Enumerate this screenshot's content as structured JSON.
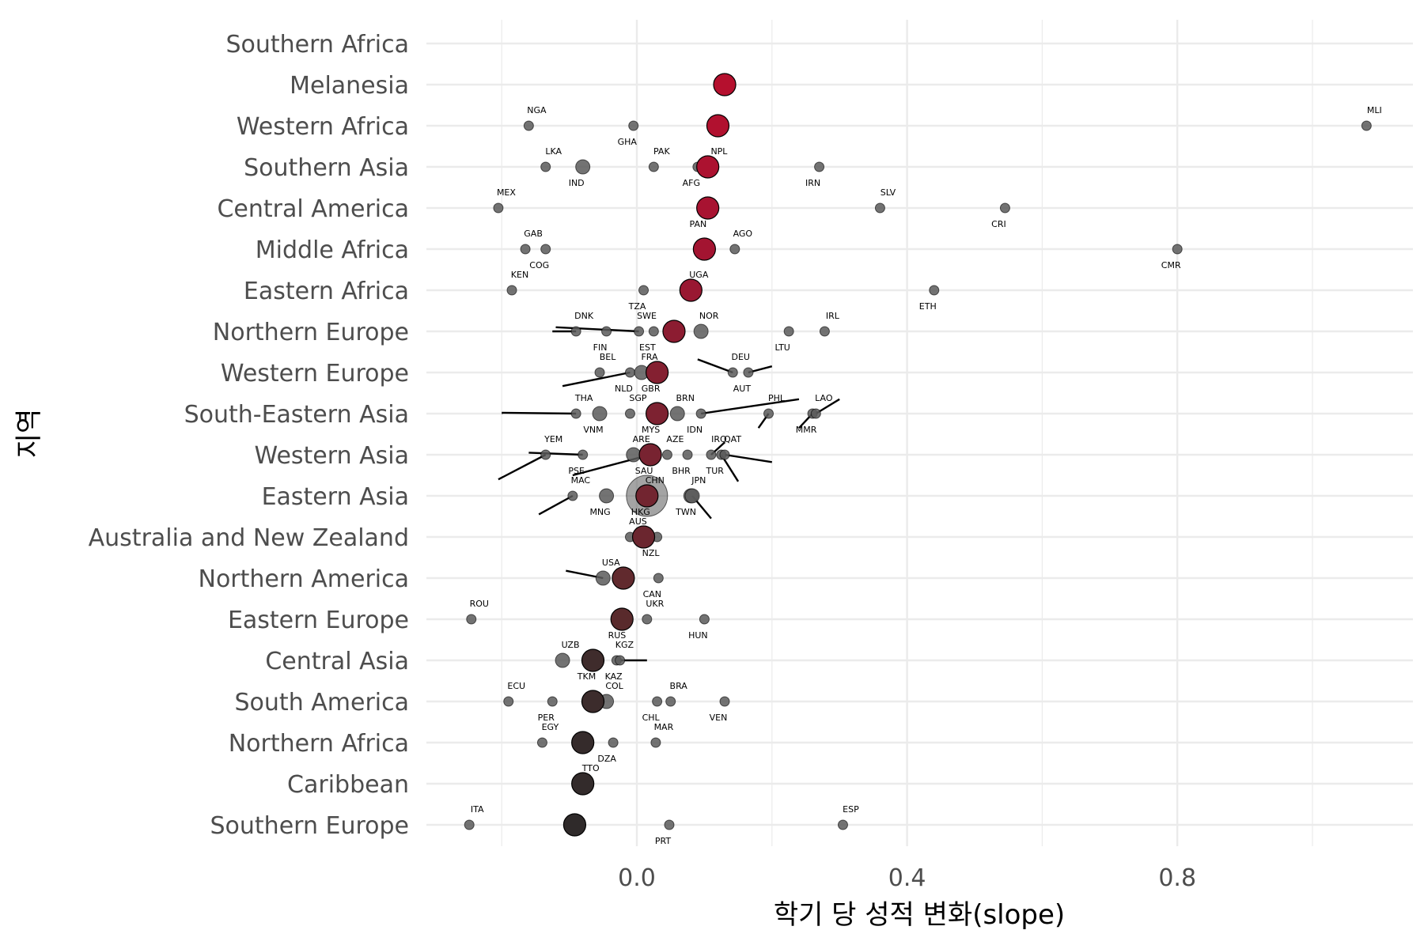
{
  "chart_data": {
    "type": "scatter",
    "title": "",
    "xlabel": "학기 당 성적 변화(slope)",
    "ylabel": "지역",
    "xlim": [
      -0.32,
      1.16
    ],
    "x_ticks": [
      {
        "value": 0.0,
        "label": "0.0"
      },
      {
        "value": 0.4,
        "label": "0.4"
      },
      {
        "value": 0.8,
        "label": "0.8"
      }
    ],
    "x_minor_gridlines": [
      -0.2,
      0.2,
      0.6,
      1.0
    ],
    "grid": true,
    "legend": "none",
    "colors": {
      "gridline": "#ebebeb",
      "country_point": "#5a5a5a",
      "mean_high": "#b5102e",
      "mean_low": "#2e2a2a",
      "outline": "#000000",
      "leader": "#000000"
    },
    "regions": [
      "Southern Africa",
      "Melanesia",
      "Western Africa",
      "Southern Asia",
      "Central America",
      "Middle Africa",
      "Eastern Africa",
      "Northern Europe",
      "Western Europe",
      "South-Eastern Asia",
      "Western Asia",
      "Eastern Asia",
      "Australia and New Zealand",
      "Northern America",
      "Eastern Europe",
      "Central Asia",
      "South America",
      "Northern Africa",
      "Caribbean",
      "Southern Europe"
    ],
    "region_means": [
      {
        "region": "Melanesia",
        "x": 0.13,
        "color": "#b5102e"
      },
      {
        "region": "Western Africa",
        "x": 0.12,
        "color": "#b1112f"
      },
      {
        "region": "Southern Asia",
        "x": 0.105,
        "color": "#ac1230"
      },
      {
        "region": "Central America",
        "x": 0.105,
        "color": "#a81331"
      },
      {
        "region": "Middle Africa",
        "x": 0.1,
        "color": "#a31431"
      },
      {
        "region": "Eastern Africa",
        "x": 0.08,
        "color": "#991832"
      },
      {
        "region": "Northern Europe",
        "x": 0.055,
        "color": "#8c1c31"
      },
      {
        "region": "Western Europe",
        "x": 0.03,
        "color": "#842031"
      },
      {
        "region": "South-Eastern Asia",
        "x": 0.03,
        "color": "#7d2231"
      },
      {
        "region": "Western Asia",
        "x": 0.02,
        "color": "#782331"
      },
      {
        "region": "Eastern Asia",
        "x": 0.015,
        "color": "#722530"
      },
      {
        "region": "Australia and New Zealand",
        "x": 0.01,
        "color": "#6b262f"
      },
      {
        "region": "Northern America",
        "x": -0.02,
        "color": "#612a2e"
      },
      {
        "region": "Eastern Europe",
        "x": -0.022,
        "color": "#592a2c"
      },
      {
        "region": "Central Asia",
        "x": -0.065,
        "color": "#3f2c2c"
      },
      {
        "region": "South America",
        "x": -0.065,
        "color": "#3c2c2c"
      },
      {
        "region": "Northern Africa",
        "x": -0.08,
        "color": "#352b2b"
      },
      {
        "region": "Caribbean",
        "x": -0.08,
        "color": "#332b2b"
      },
      {
        "region": "Southern Europe",
        "x": -0.092,
        "color": "#2f2a2a"
      }
    ],
    "countries": [
      {
        "region": "Western Africa",
        "x": -0.16,
        "label": "NGA"
      },
      {
        "region": "Western Africa",
        "x": -0.005,
        "label": "GHA"
      },
      {
        "region": "Western Africa",
        "x": 1.08,
        "label": "MLI"
      },
      {
        "region": "Southern Asia",
        "x": -0.135,
        "label": "LKA"
      },
      {
        "region": "Southern Asia",
        "x": -0.08,
        "label": "IND"
      },
      {
        "region": "Southern Asia",
        "x": 0.025,
        "label": "PAK"
      },
      {
        "region": "Southern Asia",
        "x": 0.09,
        "label": "AFG"
      },
      {
        "region": "Southern Asia",
        "x": 0.11,
        "label": "NPL"
      },
      {
        "region": "Southern Asia",
        "x": 0.27,
        "label": "IRN"
      },
      {
        "region": "Central America",
        "x": -0.205,
        "label": "MEX"
      },
      {
        "region": "Central America",
        "x": 0.1,
        "label": "PAN"
      },
      {
        "region": "Central America",
        "x": 0.36,
        "label": "SLV"
      },
      {
        "region": "Central America",
        "x": 0.545,
        "label": "CRI"
      },
      {
        "region": "Middle Africa",
        "x": -0.165,
        "label": "GAB"
      },
      {
        "region": "Middle Africa",
        "x": -0.135,
        "label": "COG"
      },
      {
        "region": "Middle Africa",
        "x": 0.145,
        "label": "AGO"
      },
      {
        "region": "Middle Africa",
        "x": 0.8,
        "label": "CMR"
      },
      {
        "region": "Eastern Africa",
        "x": -0.185,
        "label": "KEN"
      },
      {
        "region": "Eastern Africa",
        "x": 0.01,
        "label": "TZA"
      },
      {
        "region": "Eastern Africa",
        "x": 0.08,
        "label": "UGA"
      },
      {
        "region": "Eastern Africa",
        "x": 0.44,
        "label": "ETH"
      },
      {
        "region": "Northern Europe",
        "x": -0.09,
        "label": "DNK"
      },
      {
        "region": "Northern Europe",
        "x": -0.045,
        "label": "FIN"
      },
      {
        "region": "Northern Europe",
        "x": 0.003,
        "label": "SWE"
      },
      {
        "region": "Northern Europe",
        "x": 0.025,
        "label": "EST"
      },
      {
        "region": "Northern Europe",
        "x": 0.095,
        "label": "NOR"
      },
      {
        "region": "Northern Europe",
        "x": 0.225,
        "label": "LTU"
      },
      {
        "region": "Northern Europe",
        "x": 0.278,
        "label": "IRL"
      },
      {
        "region": "Western Europe",
        "x": -0.055,
        "label": "BEL"
      },
      {
        "region": "Western Europe",
        "x": -0.01,
        "label": "NLD"
      },
      {
        "region": "Western Europe",
        "x": 0.007,
        "label": "FRA"
      },
      {
        "region": "Western Europe",
        "x": 0.03,
        "label": "GBR"
      },
      {
        "region": "Western Europe",
        "x": 0.142,
        "label": "DEU"
      },
      {
        "region": "Western Europe",
        "x": 0.165,
        "label": "AUT"
      },
      {
        "region": "South-Eastern Asia",
        "x": -0.09,
        "label": "THA"
      },
      {
        "region": "South-Eastern Asia",
        "x": -0.055,
        "label": "VNM"
      },
      {
        "region": "South-Eastern Asia",
        "x": -0.01,
        "label": "SGP"
      },
      {
        "region": "South-Eastern Asia",
        "x": 0.03,
        "label": "MYS"
      },
      {
        "region": "South-Eastern Asia",
        "x": 0.06,
        "label": "BRN"
      },
      {
        "region": "South-Eastern Asia",
        "x": 0.095,
        "label": "IDN"
      },
      {
        "region": "South-Eastern Asia",
        "x": 0.195,
        "label": "PHL"
      },
      {
        "region": "South-Eastern Asia",
        "x": 0.26,
        "label": "MMR"
      },
      {
        "region": "South-Eastern Asia",
        "x": 0.265,
        "label": "LAO"
      },
      {
        "region": "Western Asia",
        "x": -0.135,
        "label": "YEM"
      },
      {
        "region": "Western Asia",
        "x": -0.08,
        "label": "PSE"
      },
      {
        "region": "Western Asia",
        "x": -0.005,
        "label": "ARE"
      },
      {
        "region": "Western Asia",
        "x": 0.02,
        "label": "SAU"
      },
      {
        "region": "Western Asia",
        "x": 0.045,
        "label": "AZE"
      },
      {
        "region": "Western Asia",
        "x": 0.075,
        "label": "BHR"
      },
      {
        "region": "Western Asia",
        "x": 0.11,
        "label": "IRQ"
      },
      {
        "region": "Western Asia",
        "x": 0.125,
        "label": "TUR"
      },
      {
        "region": "Western Asia",
        "x": 0.13,
        "label": "QAT"
      },
      {
        "region": "Eastern Asia",
        "x": -0.095,
        "label": "MAC"
      },
      {
        "region": "Eastern Asia",
        "x": -0.045,
        "label": "MNG"
      },
      {
        "region": "Eastern Asia",
        "x": 0.015,
        "label": "CHN"
      },
      {
        "region": "Eastern Asia",
        "x": 0.015,
        "label": "HKG"
      },
      {
        "region": "Eastern Asia",
        "x": 0.08,
        "label": "JPN"
      },
      {
        "region": "Eastern Asia",
        "x": 0.082,
        "label": "TWN"
      },
      {
        "region": "Australia and New Zealand",
        "x": -0.01,
        "label": "AUS"
      },
      {
        "region": "Australia and New Zealand",
        "x": 0.03,
        "label": "NZL"
      },
      {
        "region": "Northern America",
        "x": -0.05,
        "label": "USA"
      },
      {
        "region": "Northern America",
        "x": 0.032,
        "label": "CAN"
      },
      {
        "region": "Eastern Europe",
        "x": -0.245,
        "label": "ROU"
      },
      {
        "region": "Eastern Europe",
        "x": -0.02,
        "label": "RUS"
      },
      {
        "region": "Eastern Europe",
        "x": 0.015,
        "label": "UKR"
      },
      {
        "region": "Eastern Europe",
        "x": 0.1,
        "label": "HUN"
      },
      {
        "region": "Central Asia",
        "x": -0.11,
        "label": "UZB"
      },
      {
        "region": "Central Asia",
        "x": -0.065,
        "label": "TKM"
      },
      {
        "region": "Central Asia",
        "x": -0.03,
        "label": "KGZ"
      },
      {
        "region": "Central Asia",
        "x": -0.025,
        "label": "KAZ"
      },
      {
        "region": "South America",
        "x": -0.19,
        "label": "ECU"
      },
      {
        "region": "South America",
        "x": -0.125,
        "label": "PER"
      },
      {
        "region": "South America",
        "x": -0.045,
        "label": "COL"
      },
      {
        "region": "South America",
        "x": 0.03,
        "label": "CHL"
      },
      {
        "region": "South America",
        "x": 0.05,
        "label": "BRA"
      },
      {
        "region": "South America",
        "x": 0.13,
        "label": "VEN"
      },
      {
        "region": "Northern Africa",
        "x": -0.14,
        "label": "EGY"
      },
      {
        "region": "Northern Africa",
        "x": -0.035,
        "label": "DZA"
      },
      {
        "region": "Northern Africa",
        "x": 0.028,
        "label": "MAR"
      },
      {
        "region": "Caribbean",
        "x": -0.08,
        "label": "TTO"
      },
      {
        "region": "Southern Europe",
        "x": -0.248,
        "label": "ITA"
      },
      {
        "region": "Southern Europe",
        "x": 0.048,
        "label": "PRT"
      },
      {
        "region": "Southern Europe",
        "x": 0.305,
        "label": "ESP"
      }
    ]
  }
}
